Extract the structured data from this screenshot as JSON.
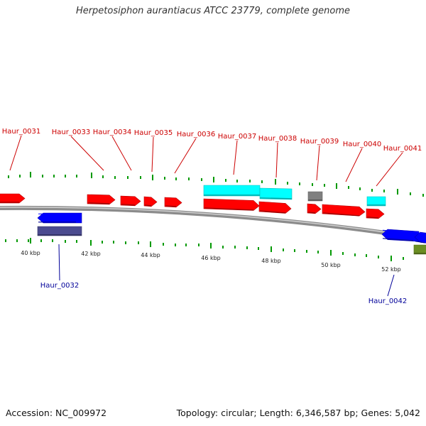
{
  "title": "Herpetosiphon aurantiacus ATCC 23779, complete genome",
  "footer": {
    "accession": "Accession: NC_009972",
    "summary": "Topology: circular; Length: 6,346,587 bp; Genes: 5,042"
  },
  "colors": {
    "forward_cds": "#ff0000",
    "reverse_cds": "#0000ff",
    "label_forward": "#cc0000",
    "label_reverse": "#000099",
    "rna": "#00ffff",
    "other": "#808080",
    "tick": "#009900",
    "backbone": "#8c8c8c"
  },
  "scale_labels": [
    "40 kbp",
    "42 kbp",
    "44 kbp",
    "46 kbp",
    "48 kbp",
    "50 kbp",
    "52 kbp"
  ],
  "top_labels": [
    "Haur_0031",
    "Haur_0033",
    "Haur_0034",
    "Haur_0035",
    "Haur_0036",
    "Haur_0037",
    "Haur_0038",
    "Haur_0039",
    "Haur_0040",
    "Haur_0041"
  ],
  "bottom_labels": [
    "Haur_0032",
    "Haur_0042"
  ]
}
